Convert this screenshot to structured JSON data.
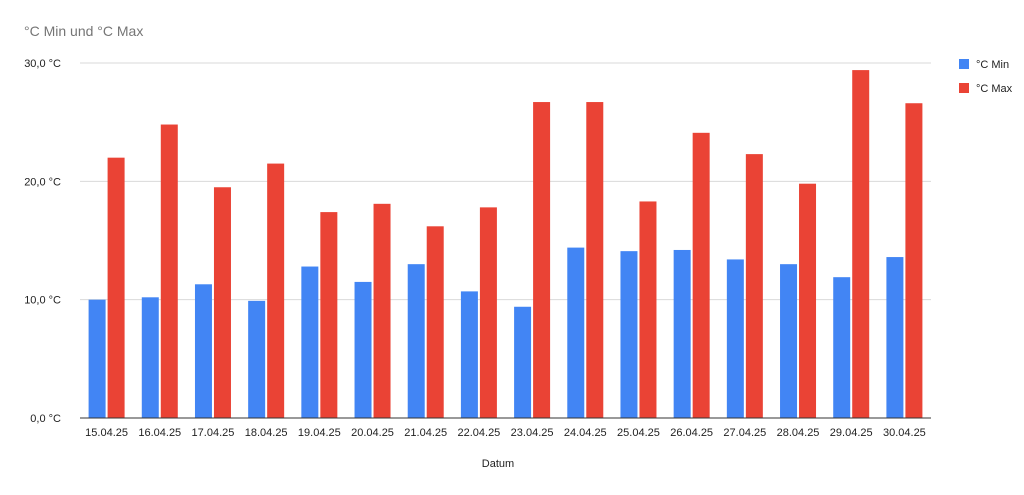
{
  "chart_data": {
    "type": "bar",
    "title": "°C Min und °C Max",
    "xlabel": "Datum",
    "ylabel": "",
    "ylim": [
      0,
      30
    ],
    "yticks": [
      {
        "value": 0,
        "label": "0,0 °C"
      },
      {
        "value": 10,
        "label": "10,0 °C"
      },
      {
        "value": 20,
        "label": "20,0 °C"
      },
      {
        "value": 30,
        "label": "30,0 °C"
      }
    ],
    "grid": true,
    "legend_position": "right",
    "categories": [
      "15.04.25",
      "16.04.25",
      "17.04.25",
      "18.04.25",
      "19.04.25",
      "20.04.25",
      "21.04.25",
      "22.04.25",
      "23.04.25",
      "24.04.25",
      "25.04.25",
      "26.04.25",
      "27.04.25",
      "28.04.25",
      "29.04.25",
      "30.04.25"
    ],
    "series": [
      {
        "name": "°C Min",
        "color": "#4285f4",
        "values": [
          10.0,
          10.2,
          11.3,
          9.9,
          12.8,
          11.5,
          13.0,
          10.7,
          9.4,
          14.4,
          14.1,
          14.2,
          13.4,
          13.0,
          11.9,
          13.6
        ]
      },
      {
        "name": "°C Max",
        "color": "#ea4335",
        "values": [
          22.0,
          24.8,
          19.5,
          21.5,
          17.4,
          18.1,
          16.2,
          17.8,
          26.7,
          26.7,
          18.3,
          24.1,
          22.3,
          19.8,
          29.4,
          26.6
        ]
      }
    ]
  }
}
